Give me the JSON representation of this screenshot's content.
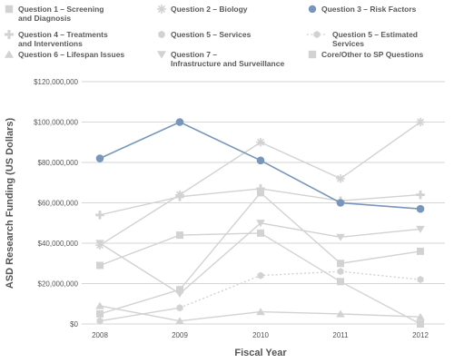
{
  "chart_data": {
    "type": "line",
    "xlabel": "Fiscal Year",
    "ylabel": "ASD Research Funding (US Dollars)",
    "x": [
      "2008",
      "2009",
      "2010",
      "2011",
      "2012"
    ],
    "ylim": [
      0,
      120000000
    ],
    "yticks": [
      0,
      20000000,
      40000000,
      60000000,
      80000000,
      100000000,
      120000000
    ],
    "ytick_labels": [
      "$0",
      "$20,000,000",
      "$40,000,000",
      "$60,000,000",
      "$80,000,000",
      "$100,000,000",
      "$120,000,000"
    ],
    "grid": "horizontal",
    "legend_position": "top",
    "highlight_color": "#7896bb",
    "muted_color": "#d2d2d2",
    "series": [
      {
        "name": "Question 1 – Screening and Diagnosis",
        "marker": "square",
        "values": [
          5000000,
          17000000,
          65000000,
          30000000,
          36000000
        ]
      },
      {
        "name": "Question 2 – Biology",
        "marker": "asterisk",
        "values": [
          39000000,
          64000000,
          90000000,
          72000000,
          100000000
        ]
      },
      {
        "name": "Question 3 – Risk Factors",
        "marker": "circle",
        "highlight": true,
        "values": [
          82000000,
          100000000,
          81000000,
          60000000,
          57000000
        ]
      },
      {
        "name": "Question 4 – Treatments and Interventions",
        "marker": "plus",
        "values": [
          54000000,
          63000000,
          67000000,
          61000000,
          64000000
        ]
      },
      {
        "name": "Question 5 – Services",
        "marker": "hexagon",
        "values": [
          1500000,
          8000000,
          null,
          null,
          null
        ]
      },
      {
        "name": "Question 5 – Estimated Services",
        "marker": "hexagon",
        "dashed": true,
        "values": [
          null,
          8000000,
          24000000,
          26000000,
          22000000
        ]
      },
      {
        "name": "Question 6 – Lifespan Issues",
        "marker": "triangle-up",
        "values": [
          9000000,
          1500000,
          6000000,
          5000000,
          3500000
        ]
      },
      {
        "name": "Question 7 – Infrastructure and Surveillance",
        "marker": "triangle-down",
        "values": [
          40000000,
          15000000,
          50000000,
          43000000,
          47000000
        ]
      },
      {
        "name": "Core/Other to SP Questions",
        "marker": "square",
        "values": [
          29000000,
          44000000,
          45000000,
          21000000,
          0
        ]
      }
    ]
  }
}
